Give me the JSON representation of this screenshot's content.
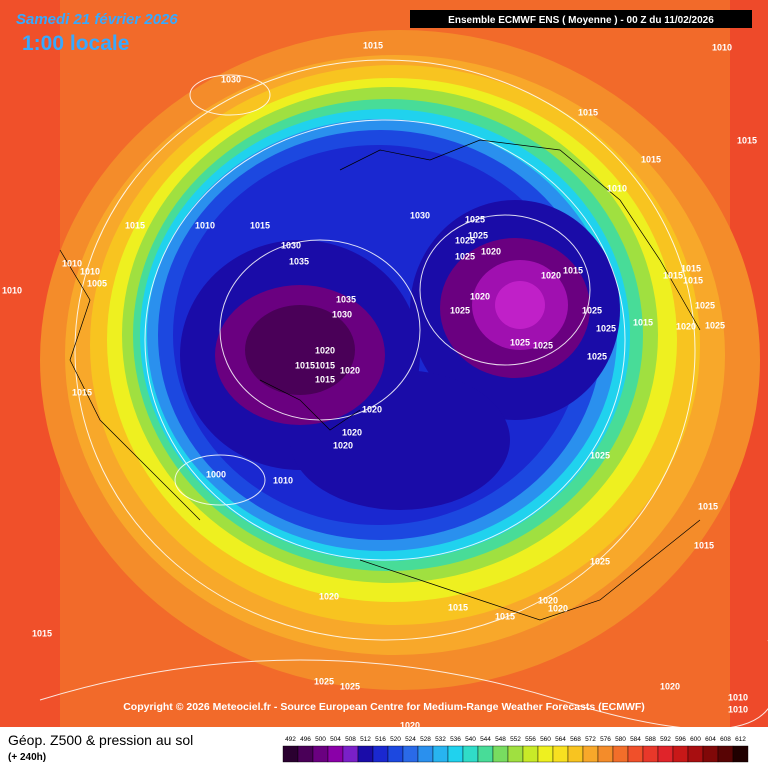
{
  "header": {
    "date": "Samedi 21 février 2026",
    "time": "1:00 locale"
  },
  "info_box": "Ensemble ECMWF ENS  ( Moyenne )  -  00 Z du 11/02/2026",
  "copyright": "Copyright © 2026 Meteociel.fr - Source European Centre for Medium-Range Weather Forecasts (ECMWF)",
  "footer": {
    "title": "Géop. Z500 & pression au sol",
    "subtitle": "(+ 240h)"
  },
  "scale": {
    "values": [
      492,
      496,
      500,
      504,
      508,
      512,
      516,
      520,
      524,
      528,
      532,
      536,
      540,
      544,
      548,
      552,
      556,
      560,
      564,
      568,
      572,
      576,
      580,
      584,
      588,
      592,
      596,
      600,
      604,
      608,
      612
    ],
    "colors": [
      "#2a0030",
      "#4a0058",
      "#6a0080",
      "#8a00a8",
      "#7a20c8",
      "#1a0ca8",
      "#1a28d0",
      "#1c48e0",
      "#2a6ae8",
      "#2a90ee",
      "#28b4f0",
      "#20d2ee",
      "#30dcc8",
      "#48dc98",
      "#78dc60",
      "#a0e040",
      "#c8ea28",
      "#eef020",
      "#f8e020",
      "#f8c420",
      "#f8a82a",
      "#f48c2a",
      "#f26e2a",
      "#f0502a",
      "#e8382a",
      "#e0242a",
      "#c81818",
      "#a80e10",
      "#800808",
      "#580404",
      "#200000"
    ]
  },
  "pressure_labels": [
    1015,
    1010,
    1030,
    1015,
    1015,
    1015,
    1010,
    1015,
    1010,
    1015,
    1030,
    1025,
    1025,
    1025,
    1030,
    1035,
    1025,
    1020,
    1010,
    1010,
    1005,
    1010,
    1020,
    1015,
    1015,
    1015,
    1015,
    1035,
    1030,
    1020,
    1025,
    1025,
    1025,
    1015,
    1025,
    1020,
    1025,
    1025,
    1025,
    1020,
    1015,
    1015,
    1020,
    1015,
    1025,
    1015,
    1020,
    1020,
    1020,
    1000,
    1010,
    1025,
    1015,
    1025,
    1015,
    1020,
    1015,
    1015,
    1020,
    1020,
    1015,
    1025,
    1025,
    1020,
    1010,
    1010,
    1020
  ]
}
